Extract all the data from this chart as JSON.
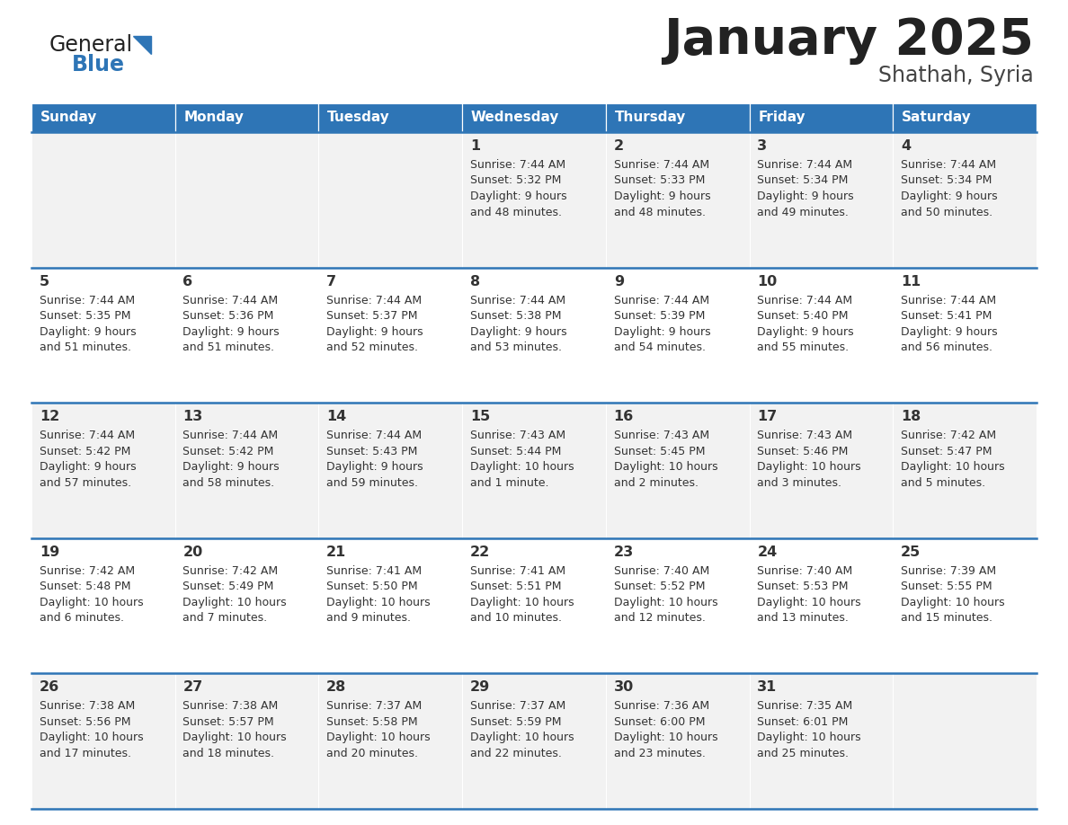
{
  "title": "January 2025",
  "subtitle": "Shathah, Syria",
  "header_bg_color": "#2E75B6",
  "header_text_color": "#FFFFFF",
  "row_bg_even": "#F2F2F2",
  "row_bg_odd": "#FFFFFF",
  "border_color": "#2E75B6",
  "text_color": "#333333",
  "days_of_week": [
    "Sunday",
    "Monday",
    "Tuesday",
    "Wednesday",
    "Thursday",
    "Friday",
    "Saturday"
  ],
  "calendar_data": [
    [
      {
        "day": "",
        "sunrise": "",
        "sunset": "",
        "daylight": ""
      },
      {
        "day": "",
        "sunrise": "",
        "sunset": "",
        "daylight": ""
      },
      {
        "day": "",
        "sunrise": "",
        "sunset": "",
        "daylight": ""
      },
      {
        "day": "1",
        "sunrise": "7:44 AM",
        "sunset": "5:32 PM",
        "daylight_line1": "Daylight: 9 hours",
        "daylight_line2": "and 48 minutes."
      },
      {
        "day": "2",
        "sunrise": "7:44 AM",
        "sunset": "5:33 PM",
        "daylight_line1": "Daylight: 9 hours",
        "daylight_line2": "and 48 minutes."
      },
      {
        "day": "3",
        "sunrise": "7:44 AM",
        "sunset": "5:34 PM",
        "daylight_line1": "Daylight: 9 hours",
        "daylight_line2": "and 49 minutes."
      },
      {
        "day": "4",
        "sunrise": "7:44 AM",
        "sunset": "5:34 PM",
        "daylight_line1": "Daylight: 9 hours",
        "daylight_line2": "and 50 minutes."
      }
    ],
    [
      {
        "day": "5",
        "sunrise": "7:44 AM",
        "sunset": "5:35 PM",
        "daylight_line1": "Daylight: 9 hours",
        "daylight_line2": "and 51 minutes."
      },
      {
        "day": "6",
        "sunrise": "7:44 AM",
        "sunset": "5:36 PM",
        "daylight_line1": "Daylight: 9 hours",
        "daylight_line2": "and 51 minutes."
      },
      {
        "day": "7",
        "sunrise": "7:44 AM",
        "sunset": "5:37 PM",
        "daylight_line1": "Daylight: 9 hours",
        "daylight_line2": "and 52 minutes."
      },
      {
        "day": "8",
        "sunrise": "7:44 AM",
        "sunset": "5:38 PM",
        "daylight_line1": "Daylight: 9 hours",
        "daylight_line2": "and 53 minutes."
      },
      {
        "day": "9",
        "sunrise": "7:44 AM",
        "sunset": "5:39 PM",
        "daylight_line1": "Daylight: 9 hours",
        "daylight_line2": "and 54 minutes."
      },
      {
        "day": "10",
        "sunrise": "7:44 AM",
        "sunset": "5:40 PM",
        "daylight_line1": "Daylight: 9 hours",
        "daylight_line2": "and 55 minutes."
      },
      {
        "day": "11",
        "sunrise": "7:44 AM",
        "sunset": "5:41 PM",
        "daylight_line1": "Daylight: 9 hours",
        "daylight_line2": "and 56 minutes."
      }
    ],
    [
      {
        "day": "12",
        "sunrise": "7:44 AM",
        "sunset": "5:42 PM",
        "daylight_line1": "Daylight: 9 hours",
        "daylight_line2": "and 57 minutes."
      },
      {
        "day": "13",
        "sunrise": "7:44 AM",
        "sunset": "5:42 PM",
        "daylight_line1": "Daylight: 9 hours",
        "daylight_line2": "and 58 minutes."
      },
      {
        "day": "14",
        "sunrise": "7:44 AM",
        "sunset": "5:43 PM",
        "daylight_line1": "Daylight: 9 hours",
        "daylight_line2": "and 59 minutes."
      },
      {
        "day": "15",
        "sunrise": "7:43 AM",
        "sunset": "5:44 PM",
        "daylight_line1": "Daylight: 10 hours",
        "daylight_line2": "and 1 minute."
      },
      {
        "day": "16",
        "sunrise": "7:43 AM",
        "sunset": "5:45 PM",
        "daylight_line1": "Daylight: 10 hours",
        "daylight_line2": "and 2 minutes."
      },
      {
        "day": "17",
        "sunrise": "7:43 AM",
        "sunset": "5:46 PM",
        "daylight_line1": "Daylight: 10 hours",
        "daylight_line2": "and 3 minutes."
      },
      {
        "day": "18",
        "sunrise": "7:42 AM",
        "sunset": "5:47 PM",
        "daylight_line1": "Daylight: 10 hours",
        "daylight_line2": "and 5 minutes."
      }
    ],
    [
      {
        "day": "19",
        "sunrise": "7:42 AM",
        "sunset": "5:48 PM",
        "daylight_line1": "Daylight: 10 hours",
        "daylight_line2": "and 6 minutes."
      },
      {
        "day": "20",
        "sunrise": "7:42 AM",
        "sunset": "5:49 PM",
        "daylight_line1": "Daylight: 10 hours",
        "daylight_line2": "and 7 minutes."
      },
      {
        "day": "21",
        "sunrise": "7:41 AM",
        "sunset": "5:50 PM",
        "daylight_line1": "Daylight: 10 hours",
        "daylight_line2": "and 9 minutes."
      },
      {
        "day": "22",
        "sunrise": "7:41 AM",
        "sunset": "5:51 PM",
        "daylight_line1": "Daylight: 10 hours",
        "daylight_line2": "and 10 minutes."
      },
      {
        "day": "23",
        "sunrise": "7:40 AM",
        "sunset": "5:52 PM",
        "daylight_line1": "Daylight: 10 hours",
        "daylight_line2": "and 12 minutes."
      },
      {
        "day": "24",
        "sunrise": "7:40 AM",
        "sunset": "5:53 PM",
        "daylight_line1": "Daylight: 10 hours",
        "daylight_line2": "and 13 minutes."
      },
      {
        "day": "25",
        "sunrise": "7:39 AM",
        "sunset": "5:55 PM",
        "daylight_line1": "Daylight: 10 hours",
        "daylight_line2": "and 15 minutes."
      }
    ],
    [
      {
        "day": "26",
        "sunrise": "7:38 AM",
        "sunset": "5:56 PM",
        "daylight_line1": "Daylight: 10 hours",
        "daylight_line2": "and 17 minutes."
      },
      {
        "day": "27",
        "sunrise": "7:38 AM",
        "sunset": "5:57 PM",
        "daylight_line1": "Daylight: 10 hours",
        "daylight_line2": "and 18 minutes."
      },
      {
        "day": "28",
        "sunrise": "7:37 AM",
        "sunset": "5:58 PM",
        "daylight_line1": "Daylight: 10 hours",
        "daylight_line2": "and 20 minutes."
      },
      {
        "day": "29",
        "sunrise": "7:37 AM",
        "sunset": "5:59 PM",
        "daylight_line1": "Daylight: 10 hours",
        "daylight_line2": "and 22 minutes."
      },
      {
        "day": "30",
        "sunrise": "7:36 AM",
        "sunset": "6:00 PM",
        "daylight_line1": "Daylight: 10 hours",
        "daylight_line2": "and 23 minutes."
      },
      {
        "day": "31",
        "sunrise": "7:35 AM",
        "sunset": "6:01 PM",
        "daylight_line1": "Daylight: 10 hours",
        "daylight_line2": "and 25 minutes."
      },
      {
        "day": "",
        "sunrise": "",
        "sunset": "",
        "daylight_line1": "",
        "daylight_line2": ""
      }
    ]
  ]
}
